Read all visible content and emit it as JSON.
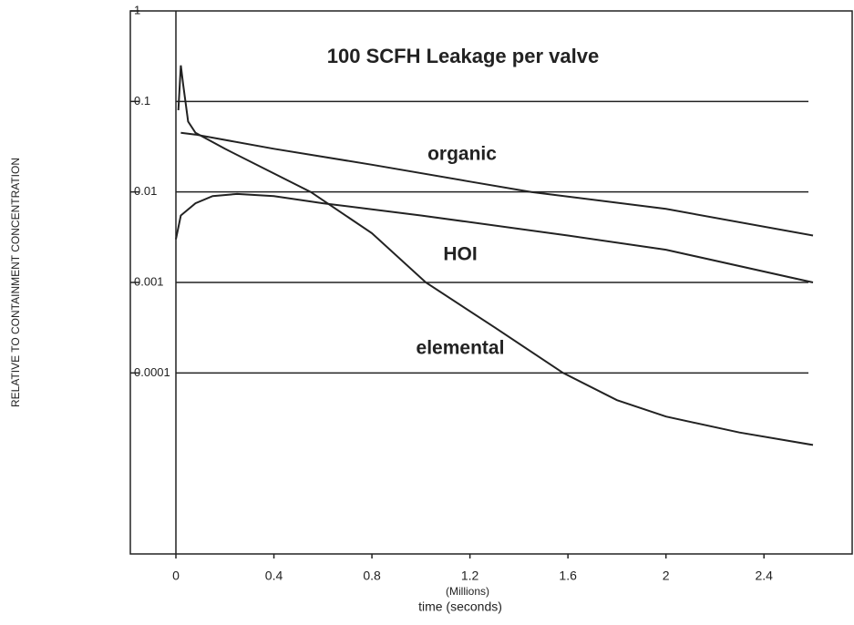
{
  "chart_data": {
    "type": "line",
    "title": "100 SCFH Leakage per valve",
    "x_label": "time (seconds)",
    "x_unit": "(Millions)",
    "y_label": "RELATIVE TO CONTAINMENT CONCENTRATION",
    "log_y": true,
    "grid": true,
    "xlim": [
      -0.186,
      2.76
    ],
    "xticks": [
      0,
      0.4,
      0.8,
      1.2,
      1.6,
      2,
      2.4
    ],
    "ylim": [
      1e-06,
      1
    ],
    "yticks": [
      1,
      0.1,
      0.01,
      0.001,
      0.0001
    ],
    "series": [
      {
        "name": "organic",
        "color": "#222222",
        "x": [
          0.02,
          0.08,
          0.4,
          0.8,
          1.2,
          1.45,
          2.0,
          2.6
        ],
        "values": [
          0.045,
          0.043,
          0.03,
          0.02,
          0.013,
          0.01,
          0.0065,
          0.0033
        ]
      },
      {
        "name": "HOI",
        "color": "#222222",
        "x": [
          0,
          0.02,
          0.08,
          0.15,
          0.25,
          0.4,
          0.6,
          1.0,
          1.6,
          2.0,
          2.6
        ],
        "values": [
          0.003,
          0.0055,
          0.0075,
          0.009,
          0.0095,
          0.009,
          0.0075,
          0.0055,
          0.0033,
          0.0023,
          0.001
        ]
      },
      {
        "name": "elemental",
        "color": "#222222",
        "x": [
          0.01,
          0.02,
          0.03,
          0.05,
          0.08,
          0.2,
          0.4,
          0.55,
          0.8,
          1.02,
          1.3,
          1.58,
          1.8,
          2.0,
          2.3,
          2.6
        ],
        "values": [
          0.08,
          0.25,
          0.15,
          0.06,
          0.045,
          0.03,
          0.016,
          0.01,
          0.0035,
          0.001,
          0.00032,
          0.0001,
          5e-05,
          3.3e-05,
          2.2e-05,
          1.6e-05
        ]
      }
    ]
  }
}
